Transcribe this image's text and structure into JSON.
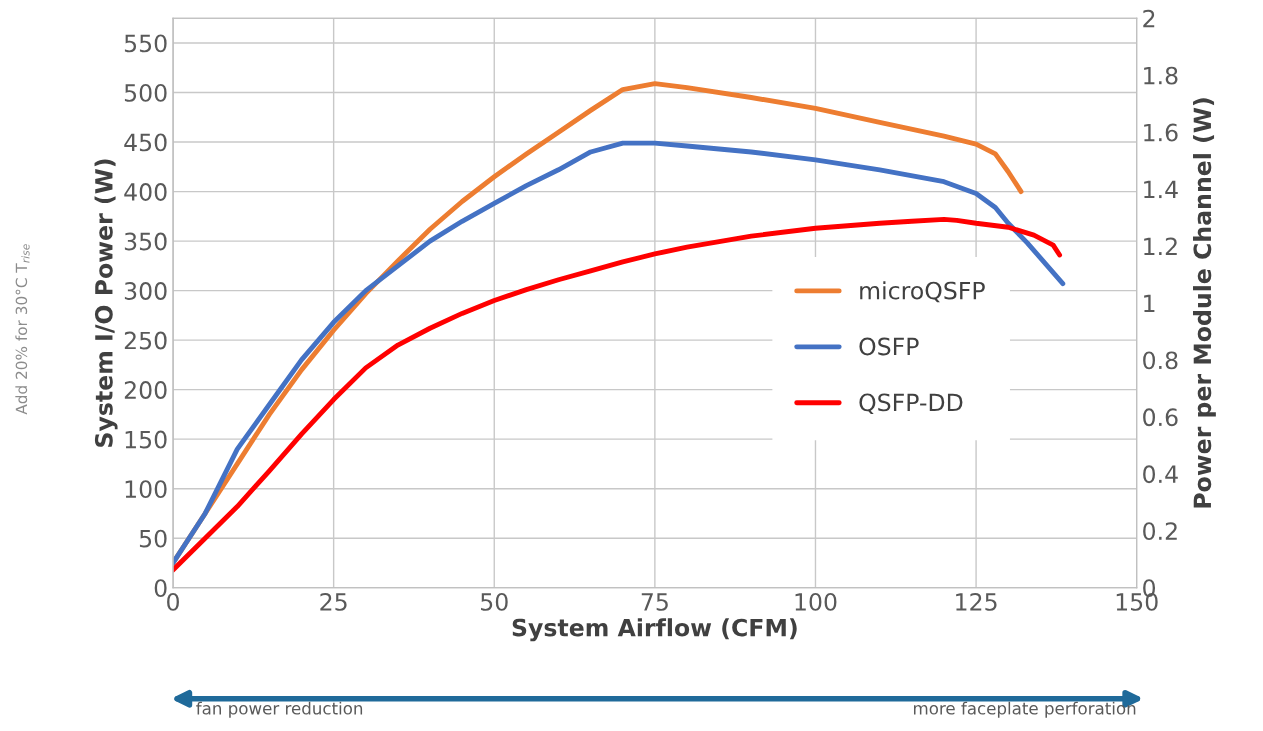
{
  "chart_data": {
    "type": "line",
    "xlabel": "System Airflow (CFM)",
    "ylabel": "System I/O Power (W)",
    "y2label": "Power per Module Channel (W)",
    "annotations": [
      "Add 20% for 30°C T$_{rise}$",
      "fan power reduction",
      "more faceplate perforation"
    ],
    "xlim": [
      0,
      150
    ],
    "xticks": [
      0,
      25,
      50,
      75,
      100,
      125,
      150
    ],
    "ylim": [
      0,
      575
    ],
    "yticks": [
      0,
      50,
      100,
      150,
      200,
      250,
      300,
      350,
      400,
      450,
      500,
      550
    ],
    "y2lim": [
      0,
      2
    ],
    "y2ticks": [
      0,
      0.2,
      0.4,
      0.6,
      0.8,
      1,
      1.2,
      1.4,
      1.6,
      1.8,
      2
    ],
    "grid": true,
    "legend": "right",
    "marker": "none",
    "line_style": "solid",
    "series": [
      {
        "name": "microQSFP",
        "color": "#ed7d31",
        "x": [
          0,
          5,
          10,
          15,
          20,
          25,
          30,
          35,
          40,
          45,
          50,
          55,
          60,
          65,
          70,
          75,
          80,
          90,
          100,
          110,
          120,
          125,
          128,
          130,
          132
        ],
        "values": [
          25,
          75,
          125,
          175,
          220,
          260,
          297,
          330,
          362,
          390,
          415,
          438,
          460,
          482,
          503,
          509,
          505,
          495,
          484,
          470,
          456,
          448,
          438,
          420,
          400
        ]
      },
      {
        "name": "OSFP",
        "color": "#4472c4",
        "x": [
          0,
          5,
          10,
          15,
          20,
          25,
          30,
          35,
          40,
          45,
          50,
          55,
          60,
          65,
          70,
          75,
          80,
          90,
          100,
          110,
          120,
          125,
          128,
          130,
          133,
          138.5
        ],
        "values": [
          25,
          75,
          140,
          185,
          230,
          268,
          300,
          325,
          350,
          370,
          388,
          406,
          422,
          440,
          449,
          449,
          446,
          440,
          432,
          422,
          410,
          398,
          384,
          368,
          348,
          307
        ]
      },
      {
        "name": "QSFP-DD",
        "color": "#ff0000",
        "x": [
          0,
          5,
          10,
          15,
          20,
          25,
          30,
          35,
          40,
          45,
          50,
          55,
          60,
          65,
          70,
          75,
          80,
          90,
          100,
          110,
          115,
          120,
          122,
          125,
          130,
          134,
          137,
          138
        ],
        "values": [
          18,
          50,
          82,
          118,
          155,
          190,
          222,
          245,
          262,
          277,
          290,
          301,
          311,
          320,
          329,
          337,
          344,
          355,
          363,
          368,
          370,
          372,
          371,
          368,
          364,
          356,
          346,
          336
        ]
      }
    ]
  }
}
